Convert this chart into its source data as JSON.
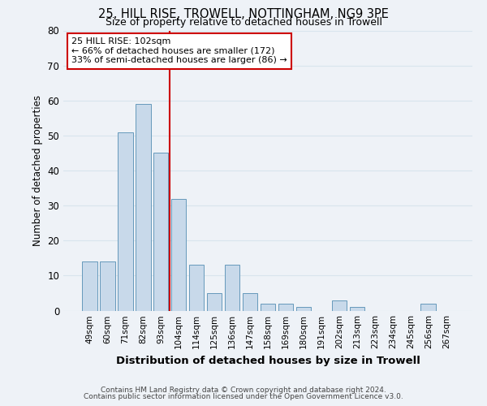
{
  "title": "25, HILL RISE, TROWELL, NOTTINGHAM, NG9 3PE",
  "subtitle": "Size of property relative to detached houses in Trowell",
  "xlabel": "Distribution of detached houses by size in Trowell",
  "ylabel": "Number of detached properties",
  "bar_labels": [
    "49sqm",
    "60sqm",
    "71sqm",
    "82sqm",
    "93sqm",
    "104sqm",
    "114sqm",
    "125sqm",
    "136sqm",
    "147sqm",
    "158sqm",
    "169sqm",
    "180sqm",
    "191sqm",
    "202sqm",
    "213sqm",
    "223sqm",
    "234sqm",
    "245sqm",
    "256sqm",
    "267sqm"
  ],
  "bar_values": [
    14,
    14,
    51,
    59,
    45,
    32,
    13,
    5,
    13,
    5,
    2,
    2,
    1,
    0,
    3,
    1,
    0,
    0,
    0,
    2,
    0
  ],
  "bar_color": "#c8d9ea",
  "bar_edge_color": "#6699bb",
  "vline_color": "#cc0000",
  "annotation_box_color": "#cc0000",
  "annotation_text_line1": "25 HILL RISE: 102sqm",
  "annotation_text_line2": "← 66% of detached houses are smaller (172)",
  "annotation_text_line3": "33% of semi-detached houses are larger (86) →",
  "ylim": [
    0,
    80
  ],
  "yticks": [
    0,
    10,
    20,
    30,
    40,
    50,
    60,
    70,
    80
  ],
  "grid_color": "#d8e4ed",
  "background_color": "#eef2f7",
  "footer_line1": "Contains HM Land Registry data © Crown copyright and database right 2024.",
  "footer_line2": "Contains public sector information licensed under the Open Government Licence v3.0."
}
